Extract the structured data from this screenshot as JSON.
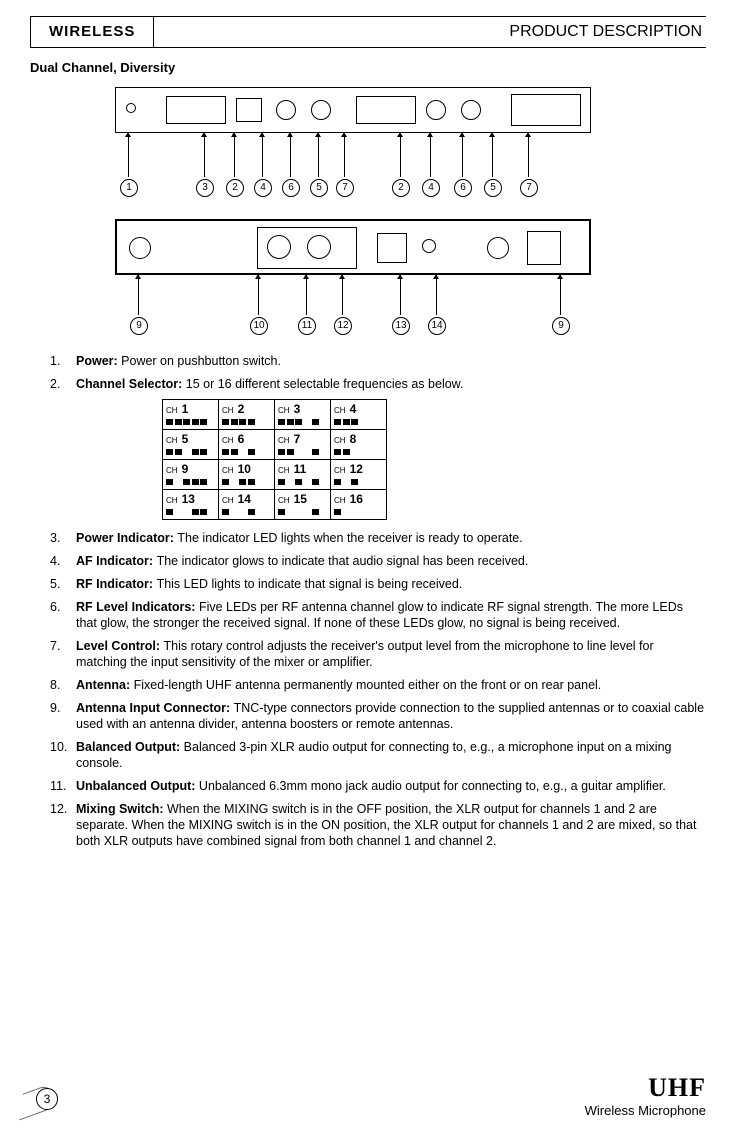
{
  "header": {
    "tab": "WIRELESS",
    "title": "PRODUCT DESCRIPTION"
  },
  "subheading": "Dual Channel, Diversity",
  "front_callouts": [
    "1",
    "3",
    "2",
    "4",
    "6",
    "5",
    "7",
    "2",
    "4",
    "6",
    "5",
    "7"
  ],
  "rear_callouts": [
    "9",
    "10",
    "11",
    "12",
    "13",
    "14",
    "9"
  ],
  "ch_table": {
    "prefix": "CH",
    "cells": [
      {
        "n": "1",
        "bars": [
          1,
          1,
          1,
          1,
          1
        ]
      },
      {
        "n": "2",
        "bars": [
          1,
          1,
          1,
          1,
          0
        ]
      },
      {
        "n": "3",
        "bars": [
          1,
          1,
          1,
          0,
          1
        ]
      },
      {
        "n": "4",
        "bars": [
          1,
          1,
          1,
          0,
          0
        ]
      },
      {
        "n": "5",
        "bars": [
          1,
          1,
          0,
          1,
          1
        ]
      },
      {
        "n": "6",
        "bars": [
          1,
          1,
          0,
          1,
          0
        ]
      },
      {
        "n": "7",
        "bars": [
          1,
          1,
          0,
          0,
          1
        ]
      },
      {
        "n": "8",
        "bars": [
          1,
          1,
          0,
          0,
          0
        ]
      },
      {
        "n": "9",
        "bars": [
          1,
          0,
          1,
          1,
          1
        ]
      },
      {
        "n": "10",
        "bars": [
          1,
          0,
          1,
          1,
          0
        ]
      },
      {
        "n": "11",
        "bars": [
          1,
          0,
          1,
          0,
          1
        ]
      },
      {
        "n": "12",
        "bars": [
          1,
          0,
          1,
          0,
          0
        ]
      },
      {
        "n": "13",
        "bars": [
          1,
          0,
          0,
          1,
          1
        ]
      },
      {
        "n": "14",
        "bars": [
          1,
          0,
          0,
          1,
          0
        ]
      },
      {
        "n": "15",
        "bars": [
          1,
          0,
          0,
          0,
          1
        ]
      },
      {
        "n": "16",
        "bars": [
          1,
          0,
          0,
          0,
          0
        ]
      }
    ]
  },
  "items": [
    {
      "num": "1.",
      "label": "Power:",
      "text": "Power on pushbutton switch."
    },
    {
      "num": "2.",
      "label": "Channel Selector:",
      "text": "15 or 16 different selectable frequencies as below."
    },
    {
      "num": "3.",
      "label": "Power Indicator:",
      "text": "The indicator LED lights when the receiver is ready to operate."
    },
    {
      "num": "4.",
      "label": "AF Indicator:",
      "text": "The indicator glows to indicate that audio signal has been received."
    },
    {
      "num": "5.",
      "label": "RF Indicator:",
      "text": "This LED lights to indicate that signal is being received."
    },
    {
      "num": "6.",
      "label": "RF Level Indicators:",
      "text": "Five LEDs per RF antenna channel glow to indicate RF signal strength.  The more LEDs that glow, the stronger the received signal.  If none of these LEDs glow, no signal is being received."
    },
    {
      "num": "7.",
      "label": "Level Control:",
      "text": "This rotary control adjusts the receiver's output level from the microphone to line level for matching the input sensitivity of the mixer or amplifier."
    },
    {
      "num": "8.",
      "label": "Antenna:",
      "text": "Fixed-length UHF antenna permanently mounted either on the front or on rear panel."
    },
    {
      "num": "9.",
      "label": "Antenna Input Connector:",
      "text": "TNC-type connectors provide connection to the supplied antennas or to coaxial cable used with an antenna divider, antenna boosters or remote antennas."
    },
    {
      "num": "10.",
      "label": "Balanced Output:",
      "text": "Balanced 3-pin XLR audio output for connecting to, e.g., a microphone input on a mixing console."
    },
    {
      "num": "11.",
      "label": "Unbalanced Output:",
      "text": "Unbalanced 6.3mm mono jack audio output for connecting to, e.g., a guitar amplifier."
    },
    {
      "num": "12.",
      "label": "Mixing Switch:",
      "text": "When the MIXING switch is in the OFF position, the XLR output for channels 1 and 2 are separate.  When the MIXING switch is in the ON position, the XLR output for channels 1 and 2 are mixed, so that both XLR outputs have combined signal from both channel 1 and channel 2."
    }
  ],
  "footer": {
    "page": "3",
    "logo": "UHF",
    "tagline": "Wireless Microphone"
  }
}
